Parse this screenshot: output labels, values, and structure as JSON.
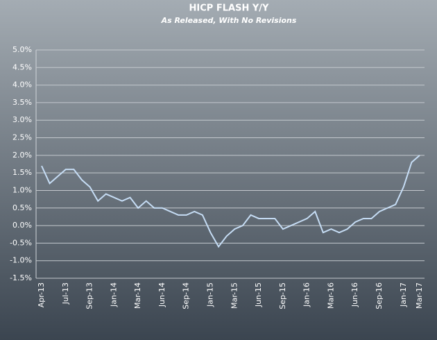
{
  "chart_data": {
    "type": "line",
    "title": "HICP FLASH Y/Y",
    "subtitle": "As Released, With No Revisions",
    "categories": [
      "Apr-13",
      null,
      null,
      "Jul-13",
      null,
      null,
      "Sep-13",
      null,
      null,
      "Jan-14",
      null,
      null,
      "Mar-14",
      null,
      null,
      "Jun-14",
      null,
      null,
      "Sep-14",
      null,
      null,
      "Jan-15",
      null,
      null,
      "Mar-15",
      null,
      null,
      "Jun-15",
      null,
      null,
      "Sep-15",
      null,
      null,
      "Jan-16",
      null,
      null,
      "Mar-16",
      null,
      null,
      "Jun-16",
      null,
      null,
      "Sep-16",
      null,
      null,
      "Jan-17",
      null,
      "Mar-17"
    ],
    "series": [
      {
        "name": "HICP Flash Y/Y",
        "color": "#c6ddf5",
        "values": [
          1.7,
          1.2,
          1.4,
          1.6,
          1.6,
          1.3,
          1.1,
          0.7,
          0.9,
          0.8,
          0.7,
          0.8,
          0.5,
          0.7,
          0.5,
          0.5,
          0.4,
          0.3,
          0.3,
          0.4,
          0.3,
          -0.2,
          -0.6,
          -0.3,
          -0.1,
          0.0,
          0.3,
          0.2,
          0.2,
          0.2,
          -0.1,
          0.0,
          0.1,
          0.2,
          0.4,
          -0.2,
          -0.1,
          -0.2,
          -0.1,
          0.1,
          0.2,
          0.2,
          0.4,
          0.5,
          0.6,
          1.1,
          1.8,
          2.0
        ]
      }
    ],
    "ylim": [
      -1.5,
      5.0
    ],
    "yticks": [
      {
        "value": -1.5,
        "label": "-1.5%"
      },
      {
        "value": -1.0,
        "label": "-1.0%"
      },
      {
        "value": -0.5,
        "label": "-0.5%"
      },
      {
        "value": 0.0,
        "label": "0.0%"
      },
      {
        "value": 0.5,
        "label": "0.5%"
      },
      {
        "value": 1.0,
        "label": "1.0%"
      },
      {
        "value": 1.5,
        "label": "1.5%"
      },
      {
        "value": 2.0,
        "label": "2.0%"
      },
      {
        "value": 2.5,
        "label": "2.5%"
      },
      {
        "value": 3.0,
        "label": "3.0%"
      },
      {
        "value": 3.5,
        "label": "3.5%"
      },
      {
        "value": 4.0,
        "label": "4.0%"
      },
      {
        "value": 4.5,
        "label": "4.5%"
      },
      {
        "value": 5.0,
        "label": "5.0%"
      }
    ],
    "grid": true
  }
}
